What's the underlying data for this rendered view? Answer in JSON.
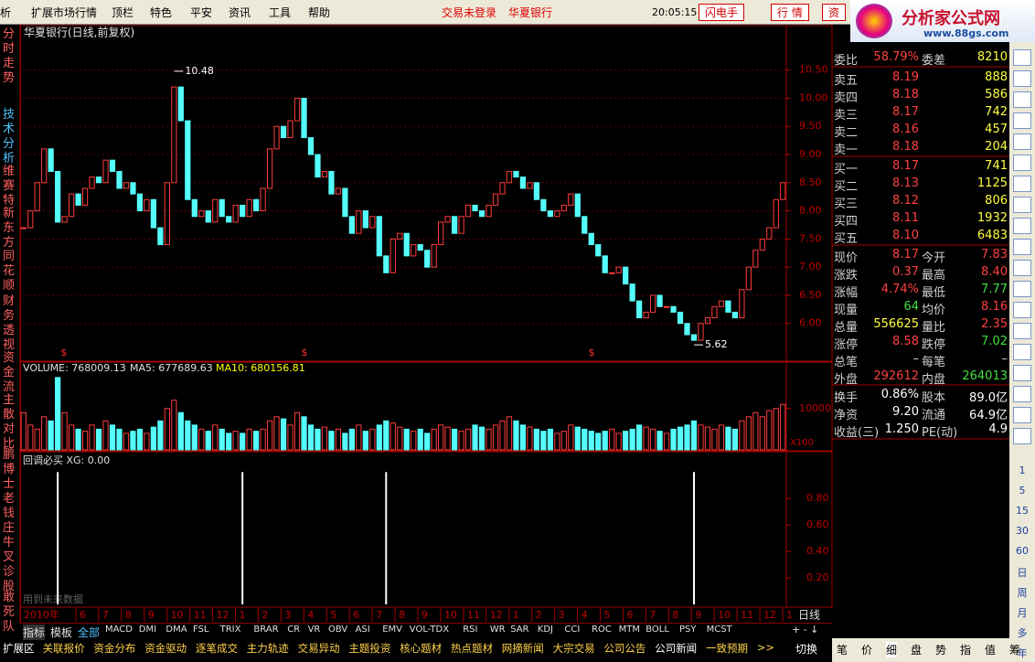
{
  "menu": {
    "items": [
      "析",
      "扩展市场行情",
      "顶栏",
      "特色",
      "平安",
      "资讯",
      "工具",
      "帮助"
    ],
    "status": [
      "交易未登录",
      "华夏银行"
    ],
    "clock": "20:05:15 周四",
    "buttons": [
      "闪电手",
      "行 情",
      "资"
    ],
    "logo": "分析家公式网",
    "logo_url": "www.88gs.com"
  },
  "sidebar": [
    "分时走势",
    "技术分析",
    "维赛特",
    "新东方",
    "同花顺",
    "财务透视",
    "资金流",
    "主散对比",
    "鹏博士",
    "老钱庄",
    "牛叉诊股",
    "敢死队"
  ],
  "price_chart": {
    "title": "华夏银行(日线,前复权)",
    "ylim": [
      5.33,
      11.29
    ],
    "yticks": [
      {
        "value": 10.5,
        "label": "10.50"
      },
      {
        "value": 10,
        "label": "10.00"
      },
      {
        "value": 9.5,
        "label": "9.50"
      },
      {
        "value": 9,
        "label": "9.00"
      },
      {
        "value": 8.5,
        "label": "8.50"
      },
      {
        "value": 8,
        "label": "8.00"
      },
      {
        "value": 7.5,
        "label": "7.50"
      },
      {
        "value": 7,
        "label": "7.00"
      },
      {
        "value": 6.5,
        "label": "6.50"
      },
      {
        "value": 6,
        "label": "6.00"
      }
    ],
    "closes": [
      7.7,
      8.0,
      8.5,
      9.1,
      8.7,
      7.8,
      7.9,
      8.3,
      8.1,
      8.4,
      8.6,
      8.5,
      8.9,
      8.7,
      8.4,
      8.5,
      8.3,
      8.0,
      8.2,
      7.7,
      7.4,
      8.5,
      10.2,
      9.6,
      8.2,
      7.9,
      8.0,
      7.8,
      8.2,
      7.9,
      7.8,
      8.1,
      7.9,
      8.2,
      8.0,
      8.4,
      9.1,
      9.5,
      9.3,
      9.6,
      10.0,
      9.3,
      9.0,
      8.6,
      8.7,
      8.3,
      8.4,
      7.9,
      7.6,
      8.0,
      7.7,
      7.9,
      7.2,
      6.9,
      7.5,
      7.6,
      7.2,
      7.4,
      7.3,
      7.0,
      7.4,
      7.8,
      7.9,
      7.6,
      7.9,
      8.1,
      8.0,
      7.9,
      8.1,
      8.3,
      8.5,
      8.7,
      8.6,
      8.4,
      8.5,
      8.2,
      8.0,
      7.9,
      8.0,
      8.1,
      8.3,
      7.9,
      7.6,
      7.4,
      7.2,
      6.9,
      6.9,
      7.0,
      6.7,
      6.4,
      6.1,
      6.2,
      6.5,
      6.3,
      6.3,
      6.2,
      6.0,
      5.8,
      5.7,
      6.0,
      6.1,
      6.3,
      6.4,
      6.2,
      6.1,
      6.6,
      7.0,
      7.3,
      7.5,
      7.7,
      8.2,
      8.5
    ],
    "annotations": [
      {
        "day": 22,
        "value": 10.48
      },
      {
        "day": 98,
        "value": 5.62
      }
    ]
  },
  "volume_chart": {
    "label": "VOLUME: 768009.13",
    "ma5": "MA5: 677689.63",
    "ma10": "MA10: 680156.81",
    "ylim": [
      0,
      21000
    ],
    "yticks": [
      10000
    ],
    "unit": "X100",
    "values": [
      9000,
      6000,
      5000,
      8000,
      7000,
      17500,
      9000,
      6000,
      5000,
      4500,
      6000,
      5000,
      7000,
      6000,
      5000,
      4000,
      4500,
      5000,
      4000,
      5500,
      7000,
      10000,
      12000,
      9000,
      7000,
      6000,
      5000,
      4500,
      6000,
      5000,
      4000,
      4500,
      4000,
      5000,
      4500,
      5000,
      7000,
      8000,
      7500,
      6000,
      9000,
      8000,
      6000,
      5000,
      5500,
      4500,
      5000,
      4000,
      5000,
      6000,
      4500,
      5000,
      6000,
      7000,
      6500,
      5500,
      5000,
      4500,
      5000,
      4000,
      5000,
      6000,
      5500,
      5000,
      4500,
      5000,
      6000,
      5500,
      5000,
      6000,
      7000,
      8000,
      7000,
      6000,
      5500,
      5000,
      4500,
      5000,
      4000,
      4500,
      6000,
      5500,
      5000,
      4500,
      4000,
      4500,
      5000,
      4000,
      4500,
      5000,
      6000,
      5500,
      5000,
      4500,
      4000,
      5000,
      5500,
      6000,
      7000,
      6000,
      5500,
      5000,
      6000,
      5500,
      5000,
      7000,
      8000,
      9000,
      8000,
      9500,
      10000,
      11000
    ]
  },
  "signal_chart": {
    "label": "回调必买 XG: 0.00",
    "note": "用到未来数据",
    "ylim": [
      0,
      1.14
    ],
    "yticks": [
      {
        "value": 0.8,
        "label": "0.80"
      },
      {
        "value": 0.6,
        "label": "0.60"
      },
      {
        "value": 0.4,
        "label": "0.40"
      },
      {
        "value": 0.2,
        "label": "0.20"
      }
    ],
    "values": [
      0,
      0,
      0,
      0,
      0,
      1,
      0,
      0,
      0,
      0,
      0,
      0,
      0,
      0,
      0,
      0,
      0,
      0,
      0,
      0,
      0,
      0,
      0,
      0,
      0,
      0,
      0,
      0,
      0,
      0,
      0,
      0,
      1,
      0,
      0,
      0,
      0,
      0,
      0,
      0,
      0,
      0,
      0,
      0,
      0,
      0,
      0,
      0,
      0,
      0,
      0,
      0,
      0,
      1,
      0,
      0,
      0,
      0,
      0,
      0,
      0,
      0,
      0,
      0,
      0,
      0,
      0,
      0,
      0,
      0,
      0,
      0,
      0,
      0,
      0,
      0,
      0,
      0,
      0,
      0,
      0,
      0,
      0,
      0,
      0,
      0,
      0,
      0,
      0,
      0,
      0,
      0,
      0,
      0,
      0,
      0,
      0,
      0,
      1,
      0,
      0,
      0,
      0,
      0,
      0,
      0,
      0,
      0,
      0,
      0,
      0,
      0
    ]
  },
  "date_axis": {
    "labels": [
      "2010年",
      "6",
      "7",
      "8",
      "9",
      "10",
      "11",
      "12",
      "1",
      "2",
      "3",
      "4",
      "5",
      "6",
      "7",
      "8",
      "9",
      "10",
      "11",
      "12",
      "1",
      "2",
      "3",
      "4",
      "5",
      "6",
      "7",
      "8",
      "9",
      "10",
      "11",
      "12",
      "1"
    ],
    "period": "日线"
  },
  "indicator_tabs": [
    "指标",
    "模板",
    "全部",
    "MACD",
    "DMI",
    "DMA",
    "FSL",
    "TRIX",
    "BRAR",
    "CR",
    "VR",
    "OBV",
    "ASI",
    "EMV",
    "VOL-TDX",
    "RSI",
    "WR",
    "SAR",
    "KDJ",
    "CCI",
    "ROC",
    "MTM",
    "BOLL",
    "PSY",
    "MCST"
  ],
  "bottom_tabs": [
    "扩展区",
    "关联报价",
    "资金分布",
    "资金驱动",
    "逐笔成交",
    "主力轨迹",
    "交易异动",
    "主题投资",
    "核心题材",
    "热点题材",
    "网摘新闻",
    "大宗交易",
    "公司公告",
    "公司新闻",
    "一致预期",
    ">>"
  ],
  "switch": "切换",
  "quote": {
    "header": [
      "委比",
      "58.79%",
      "委差",
      "8210"
    ],
    "asks": [
      [
        "卖五",
        "8.19",
        "888"
      ],
      [
        "卖四",
        "8.18",
        "586"
      ],
      [
        "卖三",
        "8.17",
        "742"
      ],
      [
        "卖二",
        "8.16",
        "457"
      ],
      [
        "卖一",
        "8.18",
        "204"
      ]
    ],
    "bids": [
      [
        "买一",
        "8.17",
        "741"
      ],
      [
        "买二",
        "8.13",
        "1125"
      ],
      [
        "买三",
        "8.12",
        "806"
      ],
      [
        "买四",
        "8.11",
        "1932"
      ],
      [
        "买五",
        "8.10",
        "6483"
      ]
    ],
    "stats": [
      [
        "现价",
        "8.17",
        "今开",
        "7.83"
      ],
      [
        "涨跌",
        "0.37",
        "最高",
        "8.40"
      ],
      [
        "涨幅",
        "4.74%",
        "最低",
        "7.77"
      ],
      [
        "现量",
        "64",
        "均价",
        "8.16"
      ],
      [
        "总量",
        "556625",
        "量比",
        "2.35"
      ],
      [
        "涨停",
        "8.58",
        "跌停",
        "7.02"
      ],
      [
        "总笔",
        "–",
        "每笔",
        "–"
      ],
      [
        "外盘",
        "292612",
        "内盘",
        "264013"
      ]
    ],
    "finance": [
      [
        "换手",
        "0.86%",
        "股本",
        "89.0亿"
      ],
      [
        "净资",
        "9.20",
        "流通",
        "64.9亿"
      ],
      [
        "收益(三)",
        "1.250",
        "PE(动)",
        "4.9"
      ]
    ]
  },
  "periods": [
    "1",
    "5",
    "15",
    "30",
    "60",
    "日",
    "周",
    "月",
    "多",
    "年"
  ],
  "detail_tabs": [
    "笔",
    "价",
    "细",
    "盘",
    "势",
    "指",
    "值",
    "筹"
  ]
}
